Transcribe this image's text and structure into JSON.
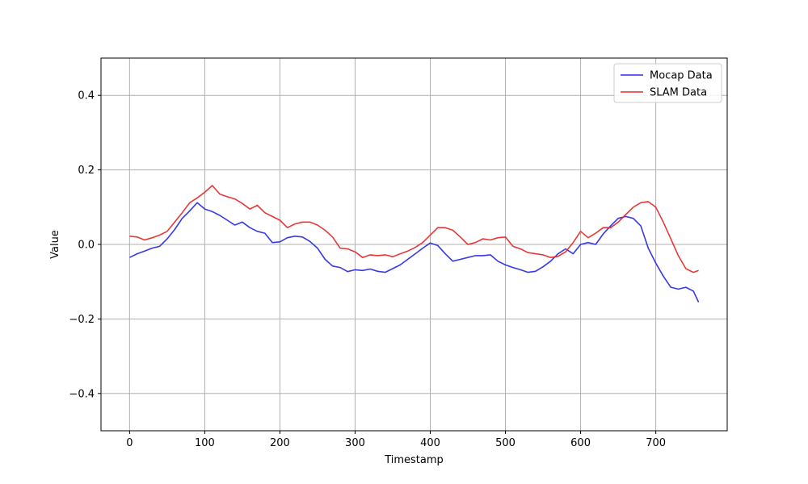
{
  "chart_data": {
    "type": "line",
    "title": "",
    "xlabel": "Timestamp",
    "ylabel": "Value",
    "xlim": [
      -38,
      795
    ],
    "ylim": [
      -0.5,
      0.5
    ],
    "xticks": [
      0,
      100,
      200,
      300,
      400,
      500,
      600,
      700
    ],
    "yticks": [
      -0.4,
      -0.2,
      0.0,
      0.2,
      0.4
    ],
    "ytick_labels": [
      "−0.4",
      "−0.2",
      "0.0",
      "0.2",
      "0.4"
    ],
    "grid": true,
    "legend_position": "top-right",
    "series": [
      {
        "name": "Mocap Data",
        "color": "#2d2de6",
        "x": [
          0,
          10,
          20,
          30,
          40,
          50,
          60,
          70,
          80,
          90,
          100,
          110,
          120,
          130,
          140,
          150,
          160,
          170,
          180,
          190,
          200,
          210,
          220,
          230,
          240,
          250,
          260,
          270,
          280,
          290,
          300,
          310,
          320,
          330,
          340,
          350,
          360,
          370,
          380,
          390,
          400,
          410,
          420,
          430,
          440,
          450,
          460,
          470,
          480,
          490,
          500,
          510,
          520,
          530,
          540,
          550,
          560,
          570,
          580,
          590,
          600,
          610,
          620,
          630,
          640,
          650,
          660,
          670,
          680,
          690,
          700,
          710,
          720,
          730,
          740,
          750,
          757
        ],
        "y": [
          -0.035,
          -0.025,
          -0.018,
          -0.01,
          -0.005,
          0.015,
          0.04,
          0.07,
          0.09,
          0.112,
          0.095,
          0.088,
          0.078,
          0.065,
          0.052,
          0.06,
          0.045,
          0.035,
          0.03,
          0.005,
          0.007,
          0.018,
          0.022,
          0.02,
          0.008,
          -0.01,
          -0.04,
          -0.058,
          -0.062,
          -0.073,
          -0.068,
          -0.07,
          -0.066,
          -0.072,
          -0.075,
          -0.065,
          -0.055,
          -0.04,
          -0.025,
          -0.01,
          0.004,
          -0.003,
          -0.025,
          -0.045,
          -0.04,
          -0.035,
          -0.03,
          -0.03,
          -0.028,
          -0.045,
          -0.055,
          -0.062,
          -0.068,
          -0.075,
          -0.072,
          -0.06,
          -0.045,
          -0.025,
          -0.012,
          -0.025,
          0.0,
          0.005,
          0.0,
          0.028,
          0.05,
          0.07,
          0.075,
          0.07,
          0.05,
          -0.01,
          -0.05,
          -0.085,
          -0.115,
          -0.12,
          -0.115,
          -0.125,
          -0.155
        ]
      },
      {
        "name": "SLAM Data",
        "color": "#e62d2d",
        "x": [
          0,
          10,
          20,
          30,
          40,
          50,
          60,
          70,
          80,
          90,
          100,
          110,
          120,
          130,
          140,
          150,
          160,
          170,
          180,
          190,
          200,
          210,
          220,
          230,
          240,
          250,
          260,
          270,
          280,
          290,
          300,
          310,
          320,
          330,
          340,
          350,
          360,
          370,
          380,
          390,
          400,
          410,
          420,
          430,
          440,
          450,
          460,
          470,
          480,
          490,
          500,
          510,
          520,
          530,
          540,
          550,
          560,
          570,
          580,
          590,
          600,
          610,
          620,
          630,
          640,
          650,
          660,
          670,
          680,
          690,
          700,
          710,
          720,
          730,
          740,
          750,
          757
        ],
        "y": [
          0.022,
          0.02,
          0.012,
          0.018,
          0.025,
          0.035,
          0.06,
          0.085,
          0.112,
          0.125,
          0.14,
          0.158,
          0.135,
          0.128,
          0.122,
          0.11,
          0.095,
          0.105,
          0.085,
          0.075,
          0.065,
          0.045,
          0.055,
          0.06,
          0.06,
          0.052,
          0.038,
          0.02,
          -0.01,
          -0.012,
          -0.02,
          -0.035,
          -0.028,
          -0.03,
          -0.028,
          -0.033,
          -0.025,
          -0.018,
          -0.008,
          0.005,
          0.025,
          0.045,
          0.045,
          0.038,
          0.02,
          0.0,
          0.005,
          0.015,
          0.012,
          0.018,
          0.02,
          -0.005,
          -0.012,
          -0.022,
          -0.025,
          -0.028,
          -0.035,
          -0.032,
          -0.02,
          0.005,
          0.035,
          0.018,
          0.03,
          0.045,
          0.045,
          0.06,
          0.08,
          0.1,
          0.112,
          0.115,
          0.1,
          0.06,
          0.015,
          -0.03,
          -0.065,
          -0.075,
          -0.07
        ]
      }
    ]
  }
}
